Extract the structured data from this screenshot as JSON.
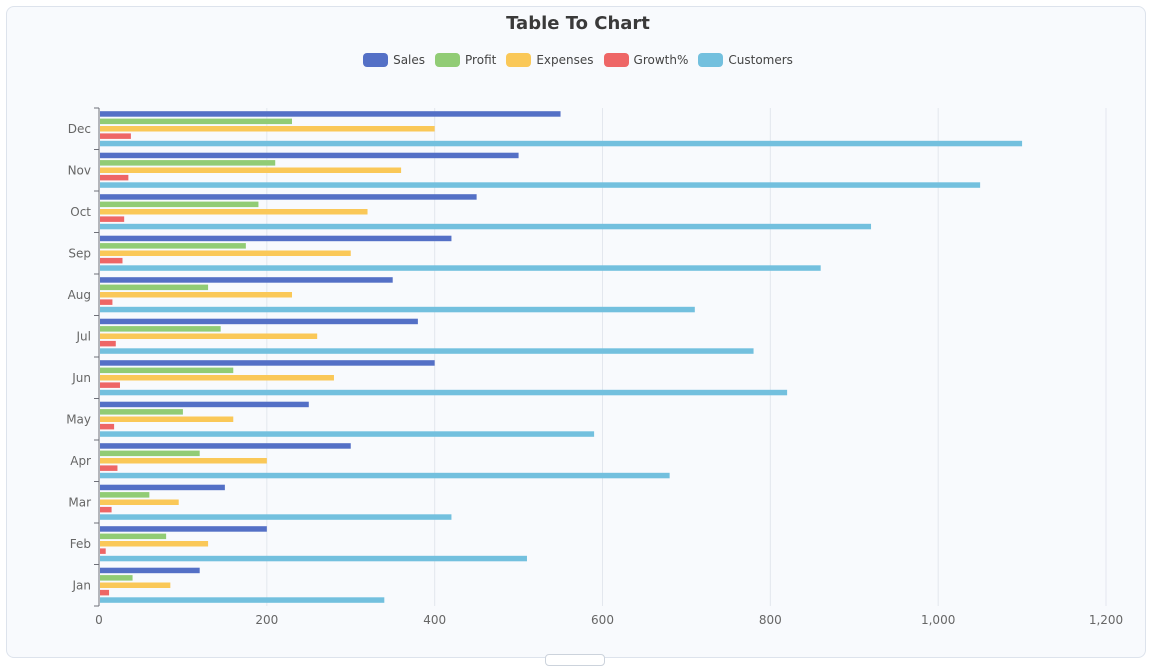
{
  "chart_data": {
    "type": "bar",
    "orientation": "horizontal",
    "title": "Table To Chart",
    "categories": [
      "Jan",
      "Feb",
      "Mar",
      "Apr",
      "May",
      "Jun",
      "Jul",
      "Aug",
      "Sep",
      "Oct",
      "Nov",
      "Dec"
    ],
    "series": [
      {
        "name": "Sales",
        "color": "#5470c6",
        "values": [
          120,
          200,
          150,
          300,
          250,
          400,
          380,
          350,
          420,
          450,
          500,
          550
        ]
      },
      {
        "name": "Profit",
        "color": "#91cc75",
        "values": [
          40,
          80,
          60,
          120,
          100,
          160,
          145,
          130,
          175,
          190,
          210,
          230
        ]
      },
      {
        "name": "Expenses",
        "color": "#fac858",
        "values": [
          85,
          130,
          95,
          200,
          160,
          280,
          260,
          230,
          300,
          320,
          360,
          400
        ]
      },
      {
        "name": "Growth%",
        "color": "#ee6666",
        "values": [
          12,
          8,
          15,
          22,
          18,
          25,
          20,
          16,
          28,
          30,
          35,
          38
        ]
      },
      {
        "name": "Customers",
        "color": "#73c0de",
        "values": [
          340,
          510,
          420,
          680,
          590,
          820,
          780,
          710,
          860,
          920,
          1050,
          1100
        ]
      }
    ],
    "xlim": [
      0,
      1200
    ],
    "xticks": [
      "0",
      "200",
      "400",
      "600",
      "800",
      "1,000",
      "1,200"
    ],
    "grid": true,
    "legend_position": "top-center"
  }
}
